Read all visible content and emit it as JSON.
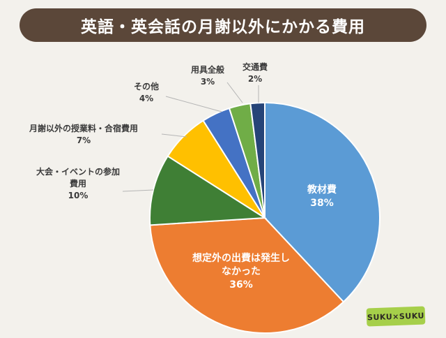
{
  "title": "英語・英会話の月謝以外にかかる費用",
  "brand": "SUKU×SUKU",
  "colors": {
    "title_bg": "#5b4739",
    "background": "#f3f1ec",
    "brand_bg": "#a6cf4a"
  },
  "chart_data": {
    "type": "pie",
    "slices": [
      {
        "label": "教材費",
        "value": 38,
        "value_text": "38%",
        "color": "#5b9bd5"
      },
      {
        "label": "想定外の出費は発生しなかった",
        "value": 36,
        "value_text": "36%",
        "color": "#ed7d31"
      },
      {
        "label": "大会・イベントの参加費用",
        "value": 10,
        "value_text": "10%",
        "color": "#3f7f35"
      },
      {
        "label": "月謝以外の授業料・合宿費用",
        "value": 7,
        "value_text": "7%",
        "color": "#ffc000"
      },
      {
        "label": "その他",
        "value": 4,
        "value_text": "4%",
        "color": "#4472c4"
      },
      {
        "label": "用具全般",
        "value": 3,
        "value_text": "3%",
        "color": "#70ad47"
      },
      {
        "label": "交通費",
        "value": 2,
        "value_text": "2%",
        "color": "#264478"
      }
    ]
  }
}
